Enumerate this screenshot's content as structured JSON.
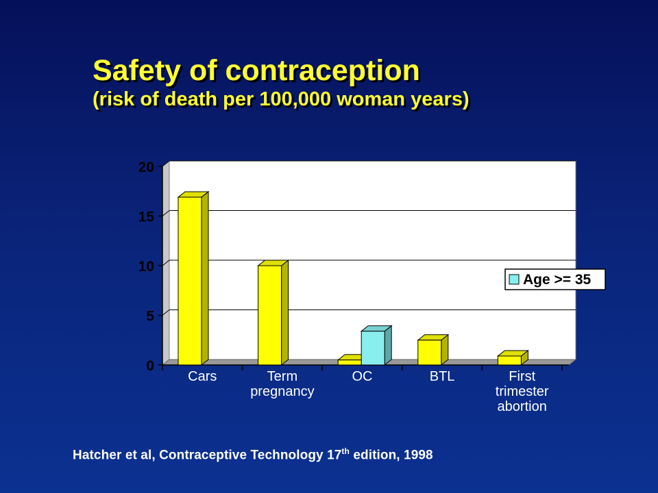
{
  "title": {
    "line1": "Safety of contraception",
    "line2": "(risk of death per 100,000 woman years)"
  },
  "footer": {
    "text_before": "Hatcher et al, Contraceptive Technology 17",
    "superscript": "th",
    "text_after": " edition, 1998"
  },
  "colors": {
    "bar_primary": "#ffff00",
    "bar_age35": "#88eeee",
    "plot_background": "#ffffff",
    "axis_text": "#000000"
  },
  "chart_data": {
    "type": "bar",
    "categories": [
      "Cars",
      "Term pregnancy",
      "OC",
      "BTL",
      "First trimester abortion"
    ],
    "category_label_lines": [
      [
        "Cars"
      ],
      [
        "Term",
        "pregnancy"
      ],
      [
        "OC"
      ],
      [
        "BTL"
      ],
      [
        "First",
        "trimester",
        "abortion"
      ]
    ],
    "series": [
      {
        "values": [
          16.9,
          10.0,
          0.5,
          2.5,
          0.9
        ],
        "color": "#ffff00"
      },
      {
        "name": "Age >= 35",
        "values": [
          null,
          null,
          3.4,
          null,
          null
        ],
        "color": "#88eeee"
      }
    ],
    "ylim": [
      0,
      20
    ],
    "yticks": [
      0,
      5,
      10,
      15,
      20
    ],
    "grid": true,
    "legend": {
      "position": "right",
      "entries": [
        "Age >= 35"
      ]
    },
    "three_d": true
  }
}
